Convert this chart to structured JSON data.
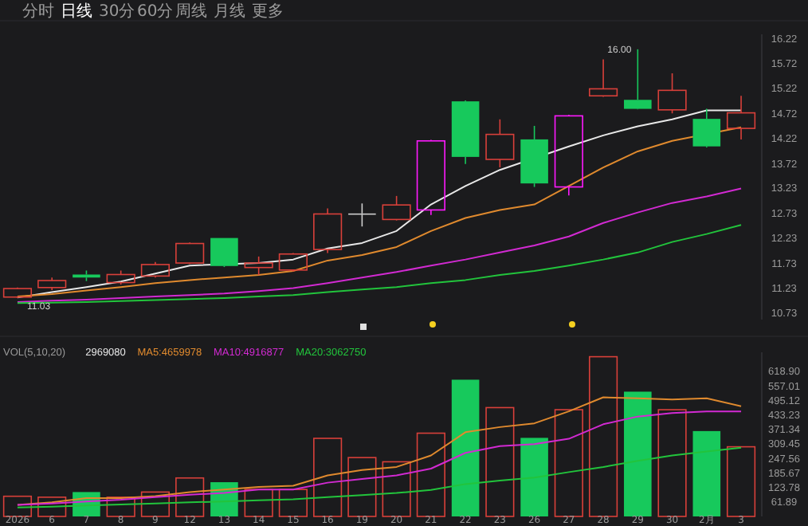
{
  "chart_data": [
    {
      "type": "other",
      "annotations": [
        "分时",
        "日线",
        "30分",
        "60分",
        "周线",
        "月线",
        "更多"
      ]
    },
    {
      "type": "candlestick",
      "annotations": [
        "16.00",
        "11.03"
      ],
      "categories": [
        null,
        null,
        null,
        null,
        null,
        null,
        null,
        null,
        null,
        null,
        null,
        null,
        null,
        null,
        null,
        null,
        null,
        null,
        null,
        null,
        null,
        null
      ],
      "ohlc": [
        [
          11.05,
          11.24,
          11.03,
          11.22
        ],
        [
          11.24,
          11.44,
          11.19,
          11.38
        ],
        [
          11.5,
          11.58,
          11.37,
          11.44
        ],
        [
          11.34,
          11.58,
          11.3,
          11.5
        ],
        [
          11.47,
          11.75,
          11.44,
          11.7
        ],
        [
          11.73,
          12.14,
          11.71,
          12.12
        ],
        [
          12.23,
          12.23,
          11.65,
          11.67
        ],
        [
          11.64,
          11.86,
          11.49,
          11.73
        ],
        [
          11.59,
          11.93,
          11.56,
          11.91
        ],
        [
          12.0,
          12.82,
          11.93,
          12.71
        ],
        [
          12.72,
          12.92,
          12.46,
          12.7
        ],
        [
          12.6,
          13.07,
          12.58,
          12.89
        ],
        [
          12.79,
          14.19,
          12.69,
          14.17
        ],
        [
          14.96,
          14.98,
          13.71,
          13.85
        ],
        [
          13.8,
          14.6,
          13.64,
          14.3
        ],
        [
          14.2,
          14.47,
          13.25,
          13.32
        ],
        [
          13.25,
          14.69,
          13.08,
          14.67
        ],
        [
          15.07,
          15.8,
          15.05,
          15.21
        ],
        [
          14.99,
          16.0,
          14.8,
          14.81
        ],
        [
          14.79,
          15.52,
          14.72,
          15.18
        ],
        [
          14.61,
          14.81,
          14.04,
          14.06
        ],
        [
          14.42,
          15.07,
          14.2,
          14.73
        ]
      ],
      "colors": [
        "#d9403a",
        "#d9403a",
        "#17c95c",
        "#d9403a",
        "#d9403a",
        "#d9403a",
        "#17c95c",
        "#d9403a",
        "#d9403a",
        "#d9403a",
        "#cfcfcf",
        "#d9403a",
        "#ff1aff",
        "#17c95c",
        "#d9403a",
        "#17c95c",
        "#ff1aff",
        "#d9403a",
        "#17c95c",
        "#d9403a",
        "#17c95c",
        "#d9403a"
      ],
      "series": [
        {
          "type": "line",
          "color": "#e8e8e8",
          "values": [
            11.04,
            11.15,
            11.25,
            11.36,
            11.52,
            11.68,
            null,
            11.73,
            11.8,
            12.02,
            12.13,
            12.37,
            12.9,
            13.27,
            13.59,
            null,
            14.06,
            14.28,
            14.46,
            14.6,
            14.78,
            14.78
          ]
        },
        {
          "type": "line",
          "color": "#e08a2e",
          "values": [
            11.06,
            11.11,
            11.18,
            11.25,
            11.33,
            11.39,
            11.44,
            11.49,
            11.57,
            11.78,
            11.89,
            12.05,
            12.37,
            12.63,
            12.79,
            12.9,
            13.27,
            13.64,
            13.96,
            14.17,
            null,
            14.44
          ]
        },
        {
          "type": "line",
          "color": "#d22ad2",
          "values": [
            10.95,
            10.98,
            11.0,
            11.03,
            11.06,
            11.09,
            11.12,
            11.17,
            11.23,
            11.33,
            11.44,
            11.55,
            11.68,
            11.8,
            11.94,
            12.08,
            12.26,
            12.53,
            12.74,
            12.93,
            13.06,
            13.22
          ]
        },
        {
          "type": "line",
          "color": "#22c43c",
          "values": [
            10.93,
            10.94,
            10.95,
            10.97,
            10.99,
            11.01,
            11.03,
            11.06,
            11.09,
            11.15,
            11.2,
            11.25,
            11.33,
            11.39,
            11.49,
            11.57,
            11.68,
            11.8,
            11.94,
            12.15,
            12.31,
            12.49
          ]
        }
      ],
      "ylim": [
        10.6,
        16.3
      ],
      "yticks": [
        16.22,
        15.72,
        15.22,
        14.72,
        14.22,
        13.72,
        13.23,
        12.73,
        12.23,
        11.73,
        11.23,
        10.73
      ],
      "tick_labels": "y"
    },
    {
      "type": "bar",
      "title": "VOL(5,10,20)",
      "annotations": [
        "2969080"
      ],
      "categories": [
        "2026",
        "6",
        "7",
        "8",
        "9",
        "12",
        "13",
        "14",
        "15",
        "16",
        "19",
        "20",
        "21",
        "22",
        "23",
        "26",
        "27",
        "28",
        "29",
        "30",
        "2月",
        "3"
      ],
      "stacked": true,
      "series": [
        {
          "color": "#d9403a",
          "values": [
            86,
            82,
            null,
            82,
            104,
            164,
            null,
            115,
            115,
            333,
            251,
            233,
            355,
            null,
            464,
            null,
            455,
            681,
            null,
            455,
            null,
            297
          ]
        },
        {
          "color": "#17c95c",
          "values": [
            null,
            null,
            104,
            null,
            null,
            null,
            146,
            null,
            null,
            null,
            null,
            null,
            null,
            583,
            null,
            335,
            null,
            null,
            532,
            null,
            364,
            null
          ]
        },
        {
          "type": "line",
          "name": "MA5:4659978",
          "color": "#e08a2e",
          "values": [
            49,
            60,
            78,
            78,
            87,
            104,
            115,
            126,
            131,
            175,
            198,
            211,
            260,
            359,
            381,
            397,
            448,
            508,
            504,
            499,
            504,
            470
          ]
        },
        {
          "type": "line",
          "name": "MA10:4916877",
          "color": "#d22ad2",
          "values": [
            49,
            55,
            64,
            71,
            82,
            93,
            100,
            115,
            115,
            144,
            160,
            175,
            204,
            271,
            300,
            308,
            331,
            393,
            426,
            441,
            448,
            448
          ]
        },
        {
          "type": "line",
          "name": "MA20:3062750",
          "color": "#22c43c",
          "values": [
            38,
            42,
            47,
            51,
            55,
            60,
            64,
            69,
            73,
            82,
            91,
            100,
            113,
            138,
            153,
            166,
            189,
            211,
            237,
            260,
            277,
            293
          ]
        }
      ],
      "ylim": [
        0,
        700
      ],
      "yticks": [
        61.89,
        123.78,
        185.67,
        247.56,
        309.45,
        371.34,
        433.23,
        495.12,
        557.01,
        {
          "value": 618.9,
          "label": "618.90"
        }
      ],
      "legend": "top left"
    }
  ]
}
